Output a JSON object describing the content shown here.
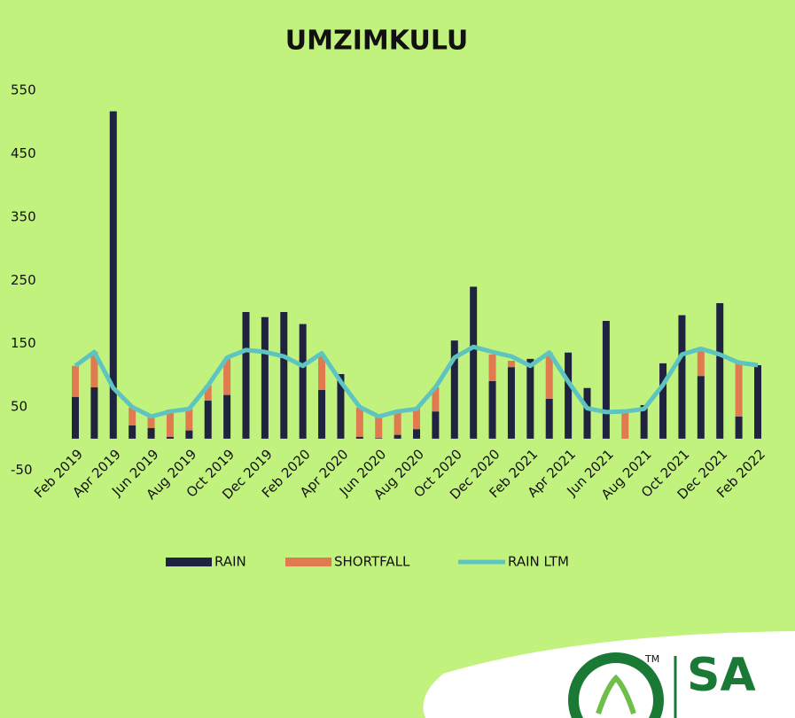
{
  "chart_data": {
    "type": "bar",
    "title": "UMZIMKULU",
    "categories": [
      "Feb 2019",
      null,
      "Apr 2019",
      null,
      "Jun 2019",
      null,
      "Aug 2019",
      null,
      "Oct 2019",
      null,
      "Dec 2019",
      null,
      "Feb 2020",
      null,
      "Apr 2020",
      null,
      "Jun 2020",
      null,
      "Aug 2020",
      null,
      "Oct 2020",
      null,
      "Dec 2020",
      null,
      "Feb 2021",
      null,
      "Apr 2021",
      null,
      "Jun 2021",
      null,
      "Aug 2021",
      null,
      "Oct 2021",
      null,
      "Dec 2021",
      null,
      "Feb 2022"
    ],
    "series": [
      {
        "name": "RAIN",
        "color": "#1f2340",
        "values": [
          66,
          81,
          517,
          21,
          17,
          3,
          13,
          60,
          69,
          200,
          192,
          200,
          181,
          77,
          102,
          3,
          1,
          6,
          15,
          43,
          155,
          240,
          91,
          113,
          126,
          63,
          136,
          80,
          186,
          0,
          53,
          119,
          195,
          99,
          214,
          35,
          116
        ]
      },
      {
        "name": "SHORTFALL",
        "color": "#e07a4f",
        "values": [
          49,
          56,
          0,
          28,
          18,
          43,
          34,
          24,
          57,
          0,
          0,
          0,
          0,
          56,
          0,
          46,
          34,
          39,
          34,
          38,
          0,
          0,
          42,
          10,
          0,
          73,
          0,
          0,
          0,
          42,
          0,
          0,
          0,
          41,
          0,
          84,
          0
        ]
      },
      {
        "name": "RAIN LTM",
        "color": "#5ec4c0",
        "type": "line",
        "values": [
          115,
          137,
          80,
          50,
          35,
          43,
          47,
          84,
          128,
          140,
          137,
          130,
          115,
          135,
          90,
          50,
          35,
          43,
          47,
          81,
          128,
          145,
          137,
          130,
          115,
          136,
          90,
          48,
          42,
          43,
          47,
          85,
          133,
          142,
          133,
          120,
          116
        ]
      }
    ],
    "ylim": [
      -50,
      550
    ],
    "yticks": [
      -50,
      50,
      150,
      250,
      350,
      450,
      550
    ],
    "stacked": true,
    "legend": "bottom"
  },
  "logo": {
    "text": "SA",
    "mark": "TM"
  }
}
